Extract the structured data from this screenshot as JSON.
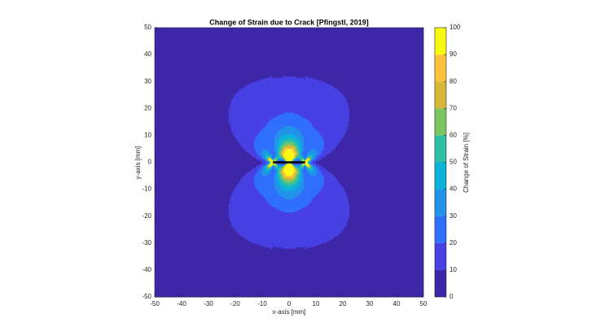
{
  "chart_data": {
    "type": "contour",
    "title": "Change of Strain due to Crack [Pfingstl, 2019]",
    "xlabel": "x-axis [mm]",
    "ylabel": "y-axis [mm]",
    "xlim": [
      -50,
      50
    ],
    "ylim": [
      -50,
      50
    ],
    "xticks": [
      -50,
      -40,
      -30,
      -20,
      -10,
      0,
      10,
      20,
      30,
      40,
      50
    ],
    "yticks": [
      -50,
      -40,
      -30,
      -20,
      -10,
      0,
      10,
      20,
      30,
      40,
      50
    ],
    "levels": [
      0,
      10,
      20,
      30,
      40,
      50,
      60,
      70,
      80,
      90,
      100
    ],
    "colors": [
      "#3e26a8",
      "#4740e2",
      "#2f6ffc",
      "#2193e8",
      "#0db2d8",
      "#2fbfa4",
      "#7bc562",
      "#d6b93b",
      "#fbc23c",
      "#f9fa14"
    ],
    "colorbar_label": "Change of Strain [%]",
    "crack": {
      "x": [
        -6,
        6
      ],
      "y": [
        0,
        0
      ],
      "color": "#000000"
    }
  }
}
